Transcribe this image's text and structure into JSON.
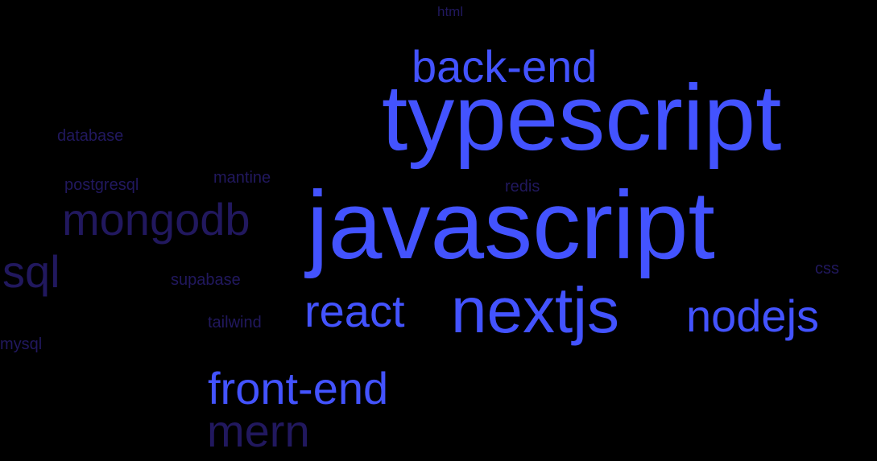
{
  "words": {
    "html": "html",
    "back_end": "back-end",
    "typescript": "typescript",
    "database": "database",
    "mantine": "mantine",
    "postgresql": "postgresql",
    "redis": "redis",
    "javascript": "javascript",
    "mongodb": "mongodb",
    "sql": "sql",
    "css": "css",
    "supabase": "supabase",
    "react": "react",
    "nextjs": "nextjs",
    "nodejs": "nodejs",
    "tailwind": "tailwind",
    "mysql": "mysql",
    "front_end": "front-end",
    "mern": "mern"
  },
  "colors": {
    "background": "#000000",
    "primary": "#4353ff",
    "secondary": "#21185e"
  }
}
